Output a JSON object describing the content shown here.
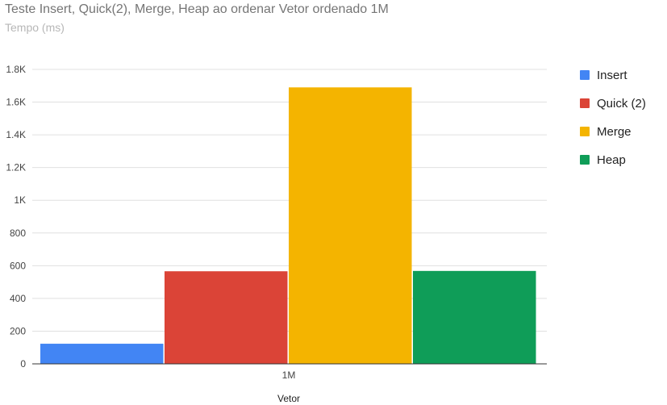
{
  "chart_data": {
    "type": "bar",
    "title": "Teste Insert, Quick(2), Merge, Heap ao ordenar Vetor ordenado 1M",
    "subtitle": "Tempo (ms)",
    "xlabel": "Vetor",
    "ylabel": "",
    "categories": [
      "1M"
    ],
    "series": [
      {
        "name": "Insert",
        "color": "#4285f4",
        "values": [
          123
        ]
      },
      {
        "name": "Quick (2)",
        "color": "#db4437",
        "values": [
          566
        ]
      },
      {
        "name": "Merge",
        "color": "#f4b400",
        "values": [
          1690
        ]
      },
      {
        "name": "Heap",
        "color": "#0f9d58",
        "values": [
          568
        ]
      }
    ],
    "ylim": [
      0,
      1800
    ],
    "yticks": [
      {
        "value": 0,
        "label": "0"
      },
      {
        "value": 200,
        "label": "200"
      },
      {
        "value": 400,
        "label": "400"
      },
      {
        "value": 600,
        "label": "600"
      },
      {
        "value": 800,
        "label": "800"
      },
      {
        "value": 1000,
        "label": "1K"
      },
      {
        "value": 1200,
        "label": "1.2K"
      },
      {
        "value": 1400,
        "label": "1.4K"
      },
      {
        "value": 1600,
        "label": "1.6K"
      },
      {
        "value": 1800,
        "label": "1.8K"
      }
    ],
    "grid": true,
    "legend_position": "right"
  }
}
